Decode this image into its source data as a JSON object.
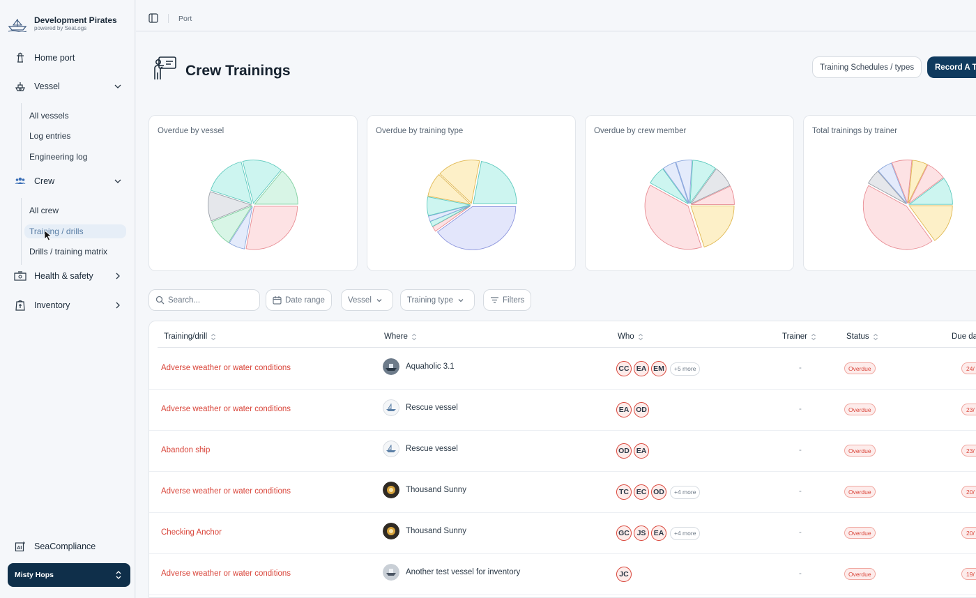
{
  "brand": {
    "title": "Development Pirates",
    "subtitle": "powered by SeaLogs"
  },
  "sidebar": {
    "home": "Home port",
    "vessel": {
      "label": "Vessel",
      "items": [
        "All vessels",
        "Log entries",
        "Engineering log"
      ]
    },
    "crew": {
      "label": "Crew",
      "items": [
        "All crew",
        "Training / drills",
        "Drills / training matrix"
      ]
    },
    "health": "Health & safety",
    "inventory": "Inventory",
    "compliance": "SeaCompliance",
    "user": "Misty Hops"
  },
  "breadcrumb": "Port",
  "page": {
    "title": "Crew Trainings",
    "secondary_button": "Training Schedules / types",
    "primary_button": "Record A Training"
  },
  "charts": [
    {
      "title": "Overdue by vessel"
    },
    {
      "title": "Overdue by training type"
    },
    {
      "title": "Overdue by crew member"
    },
    {
      "title": "Total trainings by trainer"
    }
  ],
  "chart_data": [
    {
      "type": "pie",
      "title": "Overdue by vessel",
      "values": [
        28,
        6,
        10,
        11,
        16,
        15,
        14
      ],
      "colors": [
        "#fde2e4",
        "#e4ebfb",
        "#d8f5e6",
        "#e5e7eb",
        "#cdf5f0",
        "#cdf5f0",
        "#d8f5e6"
      ]
    },
    {
      "type": "pie",
      "title": "Overdue by training type",
      "values": [
        40,
        2,
        2,
        2,
        7,
        9,
        16,
        22
      ],
      "colors": [
        "#e3e6fb",
        "#fde2e4",
        "#cdf5f0",
        "#e4ebfb",
        "#cdf5f0",
        "#fdf0c8",
        "#fdf0c8",
        "#cdf5f0"
      ]
    },
    {
      "type": "pie",
      "title": "Overdue by crew member",
      "values": [
        20,
        38,
        7,
        5,
        6,
        9,
        8,
        7
      ],
      "colors": [
        "#fdf0c8",
        "#fde2e4",
        "#cdf5f0",
        "#e4ebfb",
        "#e4ebfb",
        "#cdf5f0",
        "#e5e7eb",
        "#fde2e4"
      ]
    },
    {
      "type": "pie",
      "title": "Total trainings by trainer",
      "values": [
        16,
        46,
        6,
        6,
        8,
        6,
        8,
        11
      ],
      "colors": [
        "#fdf0c8",
        "#fde2e4",
        "#e5e7eb",
        "#e4ebfb",
        "#fde2e4",
        "#fdf0c8",
        "#fde2e4",
        "#cdf5f0"
      ]
    }
  ],
  "filters": {
    "search_placeholder": "Search...",
    "date_range": "Date range",
    "vessel": "Vessel",
    "training_type": "Training type",
    "filters": "Filters"
  },
  "table": {
    "headers": [
      "Training/drill",
      "Where",
      "Who",
      "Trainer",
      "Status",
      "Due date"
    ],
    "rows": [
      {
        "name": "Adverse weather or water conditions",
        "vessel": "Aquaholic 3.1",
        "who": [
          "CC",
          "EA",
          "EM"
        ],
        "more": "+5 more",
        "trainer": "-",
        "status": "Overdue",
        "due": "24/"
      },
      {
        "name": "Adverse weather or water conditions",
        "vessel": "Rescue vessel",
        "who": [
          "EA",
          "OD"
        ],
        "more": "",
        "trainer": "-",
        "status": "Overdue",
        "due": "23/"
      },
      {
        "name": "Abandon ship",
        "vessel": "Rescue vessel",
        "who": [
          "OD",
          "EA"
        ],
        "more": "",
        "trainer": "-",
        "status": "Overdue",
        "due": "23/"
      },
      {
        "name": "Adverse weather or water conditions",
        "vessel": "Thousand Sunny",
        "who": [
          "TC",
          "EC",
          "OD"
        ],
        "more": "+4 more",
        "trainer": "-",
        "status": "Overdue",
        "due": "20/"
      },
      {
        "name": "Checking Anchor",
        "vessel": "Thousand Sunny",
        "who": [
          "GC",
          "JS",
          "EA"
        ],
        "more": "+4 more",
        "trainer": "-",
        "status": "Overdue",
        "due": "20/"
      },
      {
        "name": "Adverse weather or water conditions",
        "vessel": "Another test vessel for inventory",
        "who": [
          "JC"
        ],
        "more": "",
        "trainer": "-",
        "status": "Overdue",
        "due": "19/"
      }
    ]
  }
}
